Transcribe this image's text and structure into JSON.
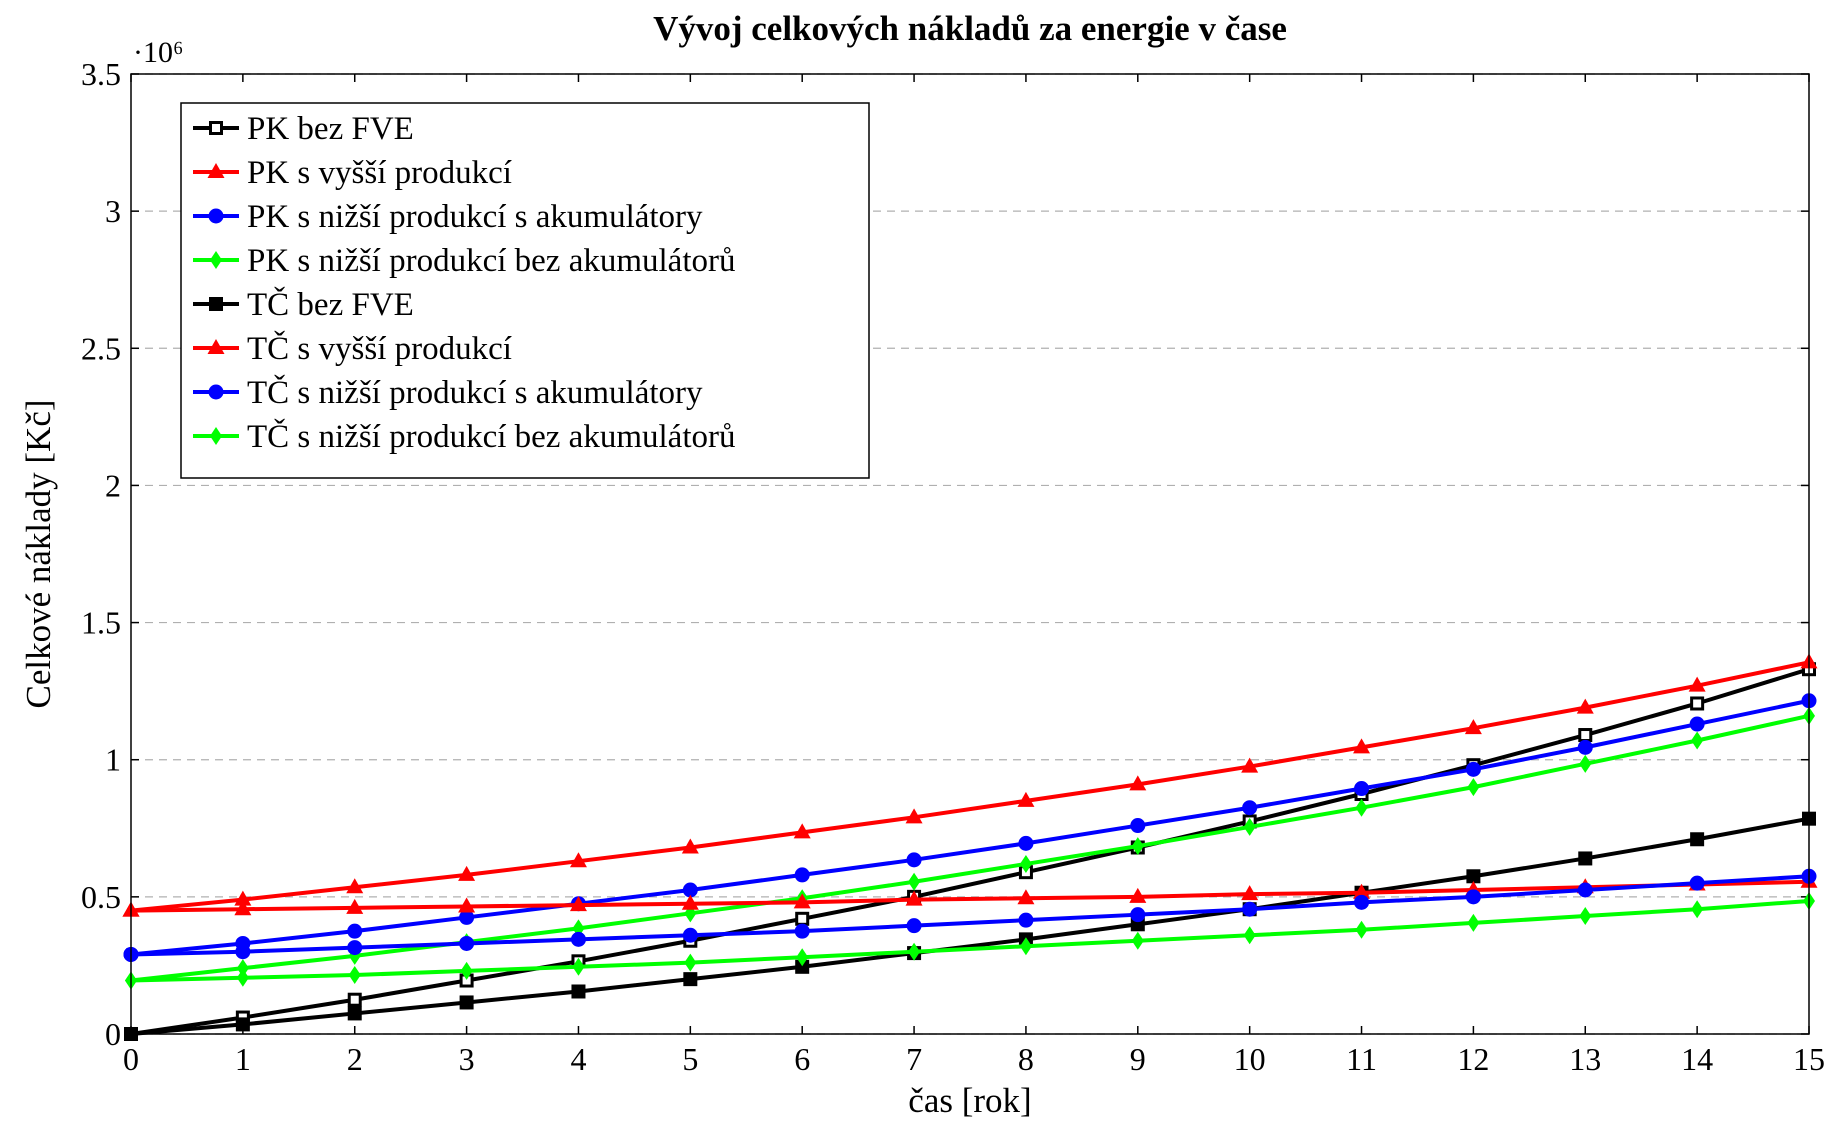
{
  "chart_data": {
    "type": "line",
    "title": "Vývoj celkových nákladů za energie v čase",
    "xlabel": "čas [rok]",
    "ylabel": "Celkové náklady [Kč]",
    "y_scale_text": "·10⁶",
    "x": [
      0,
      1,
      2,
      3,
      4,
      5,
      6,
      7,
      8,
      9,
      10,
      11,
      12,
      13,
      14,
      15
    ],
    "xlim": [
      0,
      15
    ],
    "xticks": [
      0,
      1,
      2,
      3,
      4,
      5,
      6,
      7,
      8,
      9,
      10,
      11,
      12,
      13,
      14,
      15
    ],
    "ylim": [
      0,
      3.5
    ],
    "yticks": [
      0,
      0.5,
      1,
      1.5,
      2,
      2.5,
      3,
      3.5
    ],
    "grid": true,
    "legend": "upper left",
    "series": [
      {
        "name": "PK bez FVE",
        "color": "#000000",
        "marker": "square-open",
        "values": [
          0,
          0.06,
          0.125,
          0.195,
          0.265,
          0.34,
          0.42,
          0.5,
          0.59,
          0.68,
          0.775,
          0.875,
          0.98,
          1.09,
          1.205,
          1.33
        ]
      },
      {
        "name": "PK s vyšší produkcí",
        "color": "#ff0000",
        "marker": "triangle",
        "values": [
          0.45,
          0.49,
          0.535,
          0.58,
          0.63,
          0.68,
          0.735,
          0.79,
          0.85,
          0.91,
          0.975,
          1.045,
          1.115,
          1.19,
          1.27,
          1.355
        ]
      },
      {
        "name": "PK s nižší produkcí s akumulátory",
        "color": "#0000ff",
        "marker": "circle",
        "values": [
          0.29,
          0.33,
          0.375,
          0.425,
          0.475,
          0.525,
          0.58,
          0.635,
          0.695,
          0.76,
          0.825,
          0.895,
          0.965,
          1.045,
          1.13,
          1.215
        ]
      },
      {
        "name": "PK s nižší produkcí bez akumulátorů",
        "color": "#00ff00",
        "marker": "diamond",
        "values": [
          0.195,
          0.24,
          0.285,
          0.335,
          0.385,
          0.44,
          0.495,
          0.555,
          0.62,
          0.685,
          0.755,
          0.825,
          0.9,
          0.985,
          1.07,
          1.16
        ]
      },
      {
        "name": "TČ bez FVE",
        "color": "#000000",
        "marker": "square",
        "values": [
          0,
          0.035,
          0.075,
          0.115,
          0.155,
          0.2,
          0.245,
          0.295,
          0.345,
          0.4,
          0.455,
          0.515,
          0.575,
          0.64,
          0.71,
          0.785
        ]
      },
      {
        "name": "TČ s vyšší produkcí",
        "color": "#ff0000",
        "marker": "triangle",
        "values": [
          0.45,
          0.455,
          0.46,
          0.465,
          0.47,
          0.475,
          0.48,
          0.49,
          0.495,
          0.5,
          0.51,
          0.515,
          0.525,
          0.535,
          0.545,
          0.555
        ]
      },
      {
        "name": "TČ s nižší produkcí s akumulátory",
        "color": "#0000ff",
        "marker": "circle",
        "values": [
          0.29,
          0.3,
          0.315,
          0.33,
          0.345,
          0.36,
          0.375,
          0.395,
          0.415,
          0.435,
          0.455,
          0.48,
          0.5,
          0.525,
          0.55,
          0.575
        ]
      },
      {
        "name": "TČ s nižší produkcí bez akumulátorů",
        "color": "#00ff00",
        "marker": "diamond",
        "values": [
          0.195,
          0.205,
          0.215,
          0.23,
          0.245,
          0.26,
          0.28,
          0.3,
          0.32,
          0.34,
          0.36,
          0.38,
          0.405,
          0.43,
          0.455,
          0.485
        ]
      }
    ]
  }
}
